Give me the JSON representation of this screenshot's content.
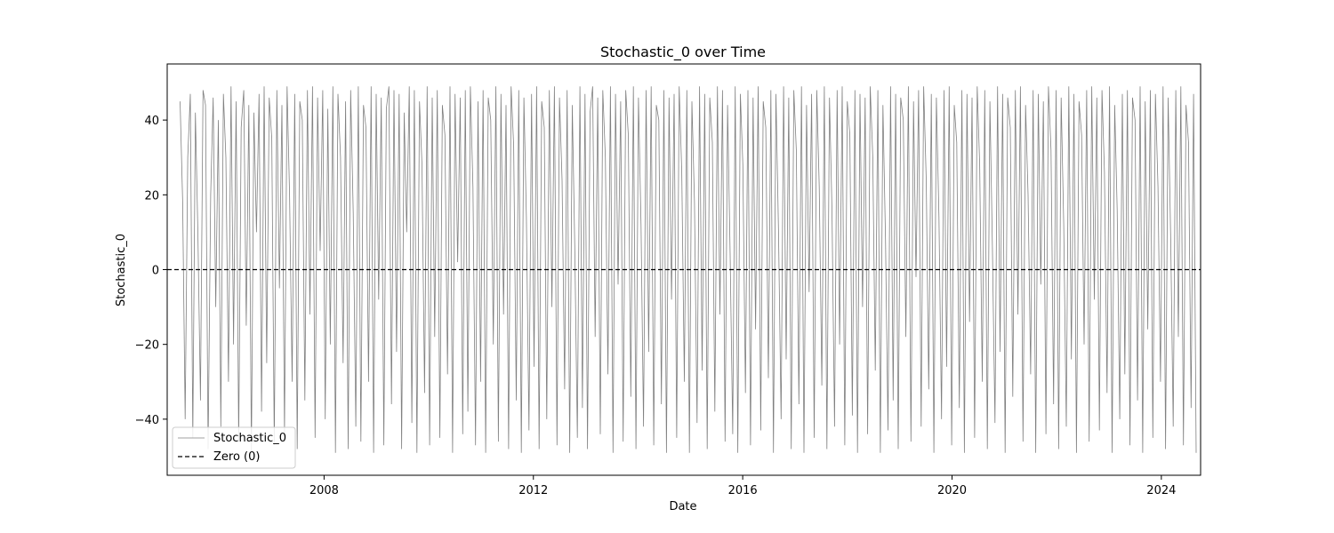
{
  "chart_data": {
    "type": "line",
    "title": "Stochastic_0 over Time",
    "xlabel": "Date",
    "ylabel": "Stochastic_0",
    "x_range": [
      "2005-01-01",
      "2024-10-01"
    ],
    "ylim": [
      -55,
      55
    ],
    "x_ticks": [
      {
        "date": "2008-01-01",
        "label": "2008"
      },
      {
        "date": "2012-01-01",
        "label": "2012"
      },
      {
        "date": "2016-01-01",
        "label": "2016"
      },
      {
        "date": "2020-01-01",
        "label": "2020"
      },
      {
        "date": "2024-01-01",
        "label": "2024"
      }
    ],
    "y_ticks": [
      {
        "value": 40,
        "label": "40"
      },
      {
        "value": 20,
        "label": "20"
      },
      {
        "value": 0,
        "label": "0"
      },
      {
        "value": -20,
        "label": "−20"
      },
      {
        "value": -40,
        "label": "−40"
      }
    ],
    "grid": false,
    "legend_position": "lower-left",
    "series": [
      {
        "name": "Stochastic_0",
        "color": "#808080",
        "style": "solid",
        "x_start": "2005-04-01",
        "x_end": "2024-08-31",
        "values": [
          45,
          18,
          -40,
          30,
          47,
          -45,
          42,
          10,
          -35,
          48,
          44,
          -48,
          20,
          46,
          -10,
          40,
          -42,
          47,
          30,
          -30,
          49,
          -20,
          45,
          -46,
          38,
          48,
          -15,
          44,
          -49,
          42,
          10,
          47,
          -38,
          49,
          -25,
          46,
          35,
          -47,
          48,
          -5,
          44,
          -44,
          49,
          20,
          -30,
          47,
          -48,
          45,
          40,
          -35,
          48,
          -12,
          49,
          -45,
          46,
          5,
          48,
          -40,
          43,
          -20,
          49,
          -49,
          47,
          30,
          -25,
          45,
          -48,
          48,
          15,
          -42,
          49,
          -46,
          44,
          38,
          -30,
          49,
          -49,
          47,
          -8,
          46,
          -47,
          43,
          49,
          -36,
          48,
          -22,
          47,
          -48,
          42,
          10,
          49,
          -41,
          48,
          -49,
          45,
          28,
          -33,
          49,
          -47,
          46,
          -18,
          48,
          -45,
          44,
          36,
          -28,
          49,
          -49,
          47,
          2,
          46,
          -44,
          48,
          -38,
          49,
          22,
          -47,
          45,
          -30,
          48,
          -49,
          46,
          40,
          -20,
          49,
          -46,
          47,
          -12,
          44,
          -48,
          49,
          33,
          -35,
          48,
          -49,
          46,
          14,
          -43,
          47,
          -26,
          49,
          -48,
          45,
          38,
          -40,
          48,
          -10,
          49,
          -47,
          46,
          24,
          -32,
          48,
          -49,
          44,
          6,
          -45,
          49,
          -37,
          47,
          -48,
          42,
          49,
          -18,
          46,
          -44,
          48,
          30,
          -28,
          49,
          -49,
          47,
          -4,
          45,
          -46,
          48,
          36,
          -34,
          49,
          -48,
          46,
          12,
          -42,
          48,
          -22,
          49,
          -47,
          44,
          40,
          -36,
          48,
          -49,
          46,
          -8,
          47,
          -45,
          49,
          26,
          -30,
          48,
          -49,
          45,
          18,
          -41,
          49,
          -27,
          47,
          -48,
          46,
          34,
          -38,
          49,
          -12,
          48,
          -46,
          44,
          4,
          -44,
          49,
          -49,
          47,
          28,
          -33,
          48,
          -47,
          46,
          -16,
          49,
          -43,
          45,
          38,
          -29,
          48,
          -49,
          47,
          10,
          -40,
          49,
          -24,
          46,
          -48,
          48,
          32,
          -36,
          49,
          -49,
          44,
          -6,
          47,
          -45,
          48,
          22,
          -31,
          49,
          -48,
          46,
          16,
          -42,
          48,
          -20,
          49,
          -47,
          45,
          36,
          -39,
          48,
          -49,
          47,
          -10,
          46,
          -44,
          49,
          30,
          -27,
          48,
          -49,
          44,
          8,
          -43,
          49,
          -35,
          47,
          -48,
          46,
          40,
          -18,
          49,
          -46,
          45,
          -2,
          48,
          -42,
          49,
          24,
          -32,
          47,
          -49,
          46,
          14,
          -40,
          48,
          -26,
          49,
          -47,
          44,
          34,
          -37,
          48,
          -49,
          47,
          -14,
          46,
          -45,
          49,
          28,
          -30,
          48,
          -48,
          45,
          6,
          -41,
          49,
          -22,
          47,
          -49,
          46,
          38,
          -34,
          48,
          -12,
          49,
          -46,
          44,
          20,
          -28,
          48,
          -49,
          47,
          -4,
          45,
          -44,
          49,
          32,
          -36,
          48,
          -48,
          46,
          12,
          -42,
          49,
          -24,
          47,
          -49,
          45,
          36,
          -20,
          48,
          -46,
          49,
          -8,
          46,
          -43,
          48,
          26,
          -33,
          49,
          -49,
          44,
          16,
          -40,
          47,
          -28,
          48,
          -47,
          46,
          40,
          -35,
          49,
          -49,
          45,
          -16,
          48,
          -45,
          47,
          22,
          -30,
          49,
          -48,
          46,
          8,
          -42,
          48,
          -18,
          49,
          -47,
          44,
          34,
          -37,
          47,
          -49
        ]
      },
      {
        "name": "Zero (0)",
        "color": "#000000",
        "style": "dashed",
        "value": 0
      }
    ]
  }
}
